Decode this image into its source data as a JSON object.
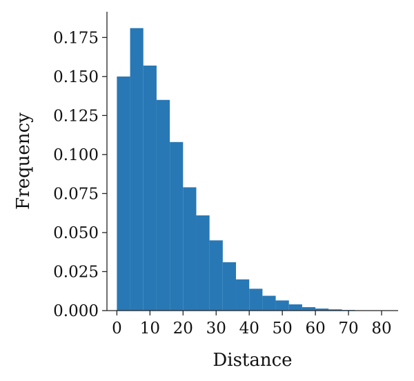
{
  "chart_data": {
    "type": "bar",
    "subtype": "histogram",
    "title": "",
    "xlabel": "Distance",
    "ylabel": "Frequency",
    "xlim": [
      -3,
      85
    ],
    "ylim": [
      0,
      0.1915
    ],
    "xticks": [
      0,
      10,
      20,
      30,
      40,
      50,
      60,
      70,
      80
    ],
    "yticks": [
      0.0,
      0.025,
      0.05,
      0.075,
      0.1,
      0.125,
      0.15,
      0.175
    ],
    "ytick_labels": [
      "0.000",
      "0.025",
      "0.050",
      "0.075",
      "0.100",
      "0.125",
      "0.150",
      "0.175"
    ],
    "bin_edges": [
      0,
      4,
      8,
      12,
      16,
      20,
      24,
      28,
      32,
      36,
      40,
      44,
      48,
      52,
      56,
      60,
      64,
      68,
      72,
      76,
      80,
      84
    ],
    "values": [
      0.15,
      0.181,
      0.157,
      0.135,
      0.108,
      0.079,
      0.061,
      0.045,
      0.031,
      0.02,
      0.014,
      0.0095,
      0.0065,
      0.004,
      0.0022,
      0.0013,
      0.0008,
      0.0004,
      0.0002,
      0.0001,
      0.0001
    ],
    "bar_color": "#2878b5",
    "grid": false,
    "legend": "none"
  }
}
